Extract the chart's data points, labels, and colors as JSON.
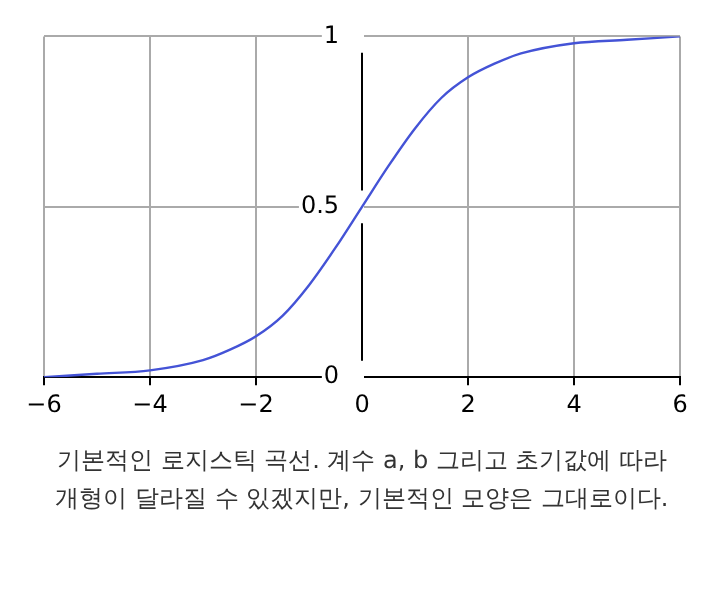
{
  "chart_data": {
    "type": "line",
    "x": [
      -6,
      -5,
      -4,
      -3,
      -2.5,
      -2,
      -1.5,
      -1,
      -0.5,
      0,
      0.5,
      1,
      1.5,
      2,
      2.5,
      3,
      4,
      5,
      6
    ],
    "series": [
      {
        "color": "#4453d6",
        "values": [
          0,
          0.01,
          0.02,
          0.05,
          0.08,
          0.12,
          0.18,
          0.27,
          0.38,
          0.5,
          0.62,
          0.73,
          0.82,
          0.88,
          0.92,
          0.95,
          0.98,
          0.99,
          1
        ]
      }
    ],
    "xlim": [
      -6,
      6
    ],
    "ylim": [
      0,
      1
    ],
    "xticks": [
      {
        "value": -6,
        "label": "−6"
      },
      {
        "value": -4,
        "label": "−4"
      },
      {
        "value": -2,
        "label": "−2"
      },
      0,
      2,
      4,
      6
    ],
    "yticks": [
      0,
      0.5,
      1
    ],
    "grid": true,
    "marker": "none",
    "line_style": "solid",
    "annotations": [
      "기본적인 로지스틱 곡선. 계수 a, b 그리고 초기값에 따라 개형이 달라질 수 있겠지만, 기본적인 모양은 그대로이다."
    ]
  }
}
